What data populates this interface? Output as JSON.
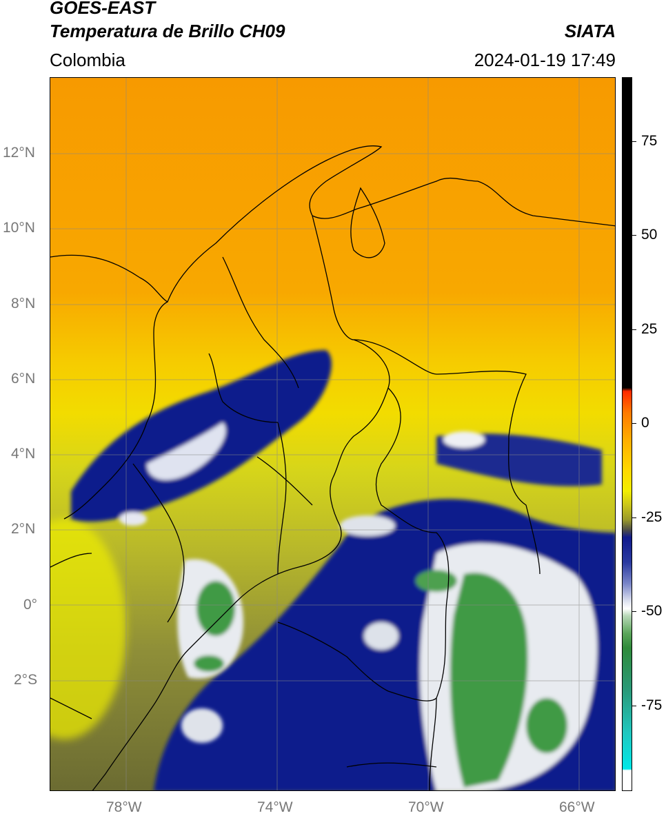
{
  "header": {
    "satellite": "GOES-EAST",
    "product": "Temperatura de Brillo CH09",
    "region": "Colombia",
    "agency": "SIATA",
    "datetime": "2024-01-19 17:49"
  },
  "map": {
    "lat_range": [
      -5,
      14
    ],
    "lon_range": [
      -80,
      -65
    ],
    "lat_ticks": [
      {
        "value": 12,
        "label": "12°N"
      },
      {
        "value": 10,
        "label": "10°N"
      },
      {
        "value": 8,
        "label": "8°N"
      },
      {
        "value": 6,
        "label": "6°N"
      },
      {
        "value": 4,
        "label": "4°N"
      },
      {
        "value": 2,
        "label": "2°N"
      },
      {
        "value": 0,
        "label": "0°"
      },
      {
        "value": -2,
        "label": "2°S"
      }
    ],
    "lon_ticks": [
      {
        "value": -78,
        "label": "78°W"
      },
      {
        "value": -74,
        "label": "74°W"
      },
      {
        "value": -70,
        "label": "70°W"
      },
      {
        "value": -66,
        "label": "66°W"
      }
    ],
    "colors": {
      "warm_orange": "#f7a100",
      "warm_yellow": "#f4e000",
      "olive": "#8a8a3a",
      "cold_navy": "#0d1a8c",
      "very_cold_white": "#eef2ee",
      "coldest_green": "#3f9a44",
      "borders": "#000000"
    }
  },
  "colorbar": {
    "range": [
      -100,
      90
    ],
    "ticks": [
      {
        "value": 75,
        "label": "75"
      },
      {
        "value": 50,
        "label": "50"
      },
      {
        "value": 25,
        "label": "25"
      },
      {
        "value": 0,
        "label": "0"
      },
      {
        "value": -25,
        "label": "-25"
      },
      {
        "value": -50,
        "label": "-50"
      },
      {
        "value": -75,
        "label": "-75"
      }
    ]
  }
}
